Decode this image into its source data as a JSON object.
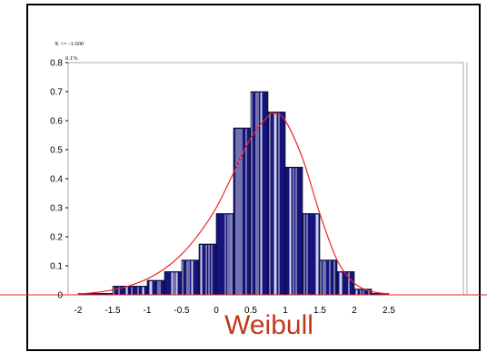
{
  "chart_data": {
    "type": "bar",
    "title": "",
    "xlabel": "",
    "ylabel": "",
    "fit_label": "Weibull",
    "marker_text_1": "X <= -1.600",
    "marker_text_2": "0.1%",
    "xlim": [
      -2.1,
      2.6
    ],
    "ylim": [
      0,
      0.8
    ],
    "x_ticks": [
      "-2",
      "-1.5",
      "-1",
      "-0.5",
      "0",
      "0.5",
      "1",
      "1.5",
      "2",
      "2.5"
    ],
    "y_ticks": [
      "0",
      "0.1",
      "0.2",
      "0.3",
      "0.4",
      "0.5",
      "0.6",
      "0.7",
      "0.8"
    ],
    "bin_width": 0.25,
    "bins": [
      {
        "x0": -2.0,
        "value": 0.005
      },
      {
        "x0": -1.75,
        "value": 0.005
      },
      {
        "x0": -1.5,
        "value": 0.03
      },
      {
        "x0": -1.25,
        "value": 0.03
      },
      {
        "x0": -1.0,
        "value": 0.05
      },
      {
        "x0": -0.75,
        "value": 0.08
      },
      {
        "x0": -0.5,
        "value": 0.12
      },
      {
        "x0": -0.25,
        "value": 0.175
      },
      {
        "x0": 0.0,
        "value": 0.28
      },
      {
        "x0": 0.25,
        "value": 0.575
      },
      {
        "x0": 0.5,
        "value": 0.7
      },
      {
        "x0": 0.75,
        "value": 0.63
      },
      {
        "x0": 1.0,
        "value": 0.44
      },
      {
        "x0": 1.25,
        "value": 0.28
      },
      {
        "x0": 1.5,
        "value": 0.12
      },
      {
        "x0": 1.75,
        "value": 0.08
      },
      {
        "x0": 2.0,
        "value": 0.02
      },
      {
        "x0": 2.25,
        "value": 0.005
      }
    ],
    "fit_curve": {
      "x": [
        -2.0,
        -1.75,
        -1.5,
        -1.25,
        -1.0,
        -0.75,
        -0.5,
        -0.25,
        0.0,
        0.25,
        0.5,
        0.75,
        0.85,
        1.0,
        1.25,
        1.5,
        1.75,
        2.0,
        2.25,
        2.5
      ],
      "y": [
        0.003,
        0.008,
        0.017,
        0.032,
        0.055,
        0.09,
        0.14,
        0.21,
        0.3,
        0.42,
        0.54,
        0.615,
        0.625,
        0.6,
        0.47,
        0.28,
        0.12,
        0.04,
        0.012,
        0.003
      ]
    },
    "colors": {
      "bar_fill": "#14147a",
      "bar_stripe": "#ffffff",
      "fit_line": "#e8262a",
      "label": "#c0391a"
    },
    "grid": false,
    "legend": "none"
  }
}
